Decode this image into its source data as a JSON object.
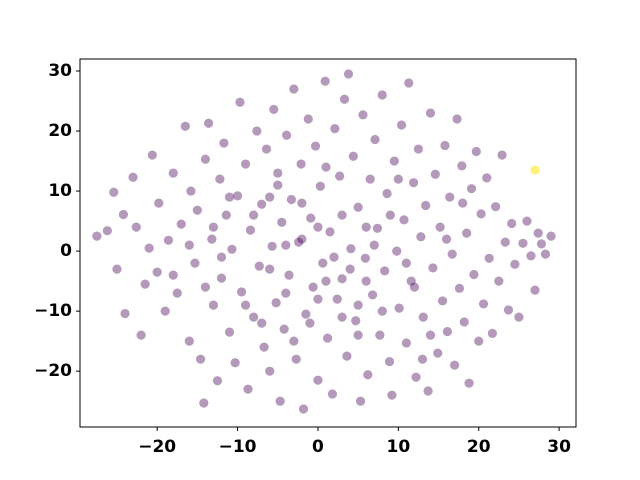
{
  "chart_data": {
    "type": "scatter",
    "xlim": [
      -29.6,
      32.1
    ],
    "ylim": [
      -29.3,
      32
    ],
    "xticks": [
      {
        "value": -20,
        "label": "−20"
      },
      {
        "value": -10,
        "label": "−10"
      },
      0,
      10,
      20,
      30
    ],
    "yticks": [
      {
        "value": -20,
        "label": "−20"
      },
      {
        "value": -10,
        "label": "−10"
      },
      0,
      10,
      20,
      30
    ],
    "series": [
      {
        "color": "#440154",
        "alpha": 0.4,
        "x": [
          -27.5,
          -26.2,
          -25.4,
          -25,
          -24.2,
          -24,
          -23,
          -22.6,
          -22,
          -21.5,
          -21,
          -20.6,
          -20,
          -19.8,
          -19,
          -18.6,
          -18,
          -17.5,
          -17,
          -16.5,
          -16,
          -15.8,
          -15.3,
          -15,
          -14.6,
          -14.2,
          -14,
          -13.6,
          -13.2,
          -13,
          -12.5,
          -12.2,
          -12,
          -11.7,
          -11.4,
          -11,
          -10.7,
          -10.3,
          -10,
          -9.7,
          -9.5,
          -9,
          -8.7,
          -8.4,
          -8,
          -7.6,
          -7.3,
          -7,
          -6.7,
          -6.4,
          -6,
          -5.7,
          -5.5,
          -5.2,
          -5,
          -4.7,
          -4.5,
          -4.2,
          -3.9,
          -3.6,
          -3.3,
          -3,
          -2.7,
          -2.4,
          -2.1,
          -1.8,
          -1.5,
          -1.2,
          -0.9,
          -0.6,
          -0.3,
          0,
          0.3,
          0.6,
          0.9,
          1.2,
          1.5,
          1.8,
          2.1,
          2.4,
          2.7,
          3,
          3.3,
          3.6,
          3.8,
          4.1,
          4.4,
          4.7,
          5,
          5.3,
          5.6,
          5.9,
          6.2,
          6.5,
          6.8,
          7.1,
          7.4,
          7.7,
          8,
          8.3,
          8.6,
          8.9,
          9.2,
          9.5,
          9.8,
          10.1,
          10.4,
          10.7,
          11,
          11.3,
          11.6,
          11.9,
          12.2,
          12.5,
          12.8,
          13.1,
          13.4,
          13.7,
          14,
          14.3,
          14.6,
          14.9,
          15.2,
          15.5,
          15.8,
          16.1,
          16.4,
          16.7,
          17,
          17.3,
          17.6,
          17.9,
          18.2,
          18.5,
          18.8,
          19.1,
          19.4,
          19.7,
          20,
          20.3,
          20.6,
          21,
          21.3,
          21.7,
          22.1,
          22.5,
          22.9,
          23.3,
          23.7,
          24.1,
          24.5,
          25,
          25.5,
          26,
          26.5,
          27,
          27.4,
          27.8,
          28.3,
          29,
          -6,
          -4,
          -2,
          1,
          3,
          5,
          7,
          -8,
          0,
          2,
          4,
          -1,
          6,
          -3,
          9,
          -12,
          12,
          -5,
          5,
          -9,
          8,
          -11,
          10,
          0,
          -7,
          14,
          -14,
          16,
          -16,
          1,
          -2,
          3,
          -4,
          6,
          -6,
          18,
          -18,
          11,
          -13,
          13
        ],
        "y": [
          2.5,
          3.4,
          9.8,
          -3,
          6.1,
          -10.4,
          12.3,
          4,
          -14,
          -5.5,
          0.5,
          16,
          -3.5,
          8,
          -10,
          1.8,
          13,
          -7,
          4.5,
          20.8,
          -15,
          10,
          -2,
          6.8,
          -18,
          -25.3,
          15.3,
          21.3,
          2,
          -9,
          -21.6,
          12,
          -4.5,
          18,
          6,
          -13.5,
          0.3,
          -18.6,
          9.2,
          24.8,
          -6.8,
          14.5,
          -23,
          3.5,
          -11,
          20,
          -2.5,
          7.8,
          -16,
          17,
          -20,
          0.8,
          23.6,
          -8.6,
          11,
          -25,
          4.8,
          -13,
          19.3,
          -4,
          8.6,
          27,
          -18,
          1.5,
          14.5,
          -26.3,
          -10.5,
          22,
          5.5,
          -6,
          17.5,
          -21.5,
          10.8,
          -2,
          28.3,
          -14.5,
          3.2,
          -23.8,
          20.4,
          -8,
          12.5,
          -4.6,
          25.3,
          -17.5,
          29.5,
          0.4,
          15.8,
          -11.6,
          7.3,
          -25,
          22.7,
          -1.2,
          -20.6,
          12,
          -7.3,
          18.6,
          3.8,
          -14,
          26,
          -3.3,
          9.6,
          -18.4,
          -24,
          15,
          0,
          -9.5,
          21,
          5.2,
          -15.3,
          28,
          -5,
          11.4,
          -21,
          17,
          2.4,
          -11,
          7.6,
          -23.3,
          23,
          -2.8,
          12.8,
          -17,
          4,
          -8.3,
          17.6,
          -13.4,
          9,
          -0.5,
          -19,
          22,
          -6.2,
          14.2,
          -11.8,
          3,
          -22,
          10.4,
          -3.9,
          16.6,
          -15,
          6.2,
          -8.8,
          12.2,
          -1.2,
          -13.7,
          7.4,
          -5,
          16,
          1.5,
          -9.8,
          4.6,
          -2.2,
          -11,
          1.3,
          5,
          -0.8,
          -6.5,
          3,
          1.2,
          -0.5,
          2.5,
          -3,
          -7,
          2,
          -5,
          6,
          -9,
          1,
          6,
          4,
          -1,
          -3,
          -12,
          4,
          -15,
          6,
          -1,
          -6,
          13,
          -14,
          -9,
          -10,
          9,
          12,
          -8,
          -12,
          -14,
          -6,
          2,
          1,
          14,
          8,
          -11,
          1,
          -5,
          9,
          8,
          -4,
          -2,
          4,
          -18
        ]
      },
      {
        "color": "#fde725",
        "alpha": 0.6,
        "x": [
          27
        ],
        "y": [
          13.5
        ]
      }
    ]
  }
}
